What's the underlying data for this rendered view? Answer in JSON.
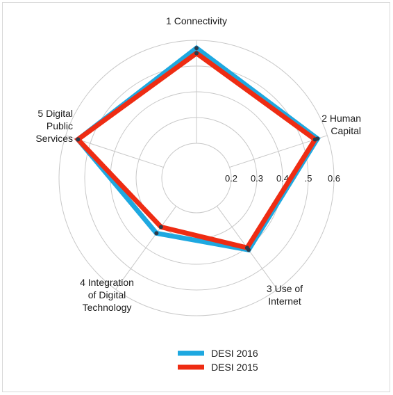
{
  "chart_data": {
    "type": "radar",
    "axes": [
      [
        "1 Connectivity"
      ],
      [
        "2 Human",
        "Capital"
      ],
      [
        "3 Use of",
        "Internet"
      ],
      [
        "4 Integration",
        "of Digital",
        "Technology"
      ],
      [
        "5 Digital",
        "Public",
        "Services"
      ]
    ],
    "rlim": [
      0.2,
      0.6
    ],
    "rticks": [
      0.2,
      0.3,
      0.4,
      0.5,
      0.6
    ],
    "rtick_labels": [
      "0.2",
      "0.3",
      "0.4",
      ".5",
      "0.6"
    ],
    "grid": true,
    "legend_position": "bottom",
    "series": [
      {
        "name": "DESI 2016",
        "color": "#1EA8E0",
        "values": [
          0.57,
          0.56,
          0.41,
          0.33,
          0.55
        ]
      },
      {
        "name": "DESI 2015",
        "color": "#EE2C13",
        "values": [
          0.55,
          0.55,
          0.4,
          0.3,
          0.55
        ]
      }
    ]
  }
}
